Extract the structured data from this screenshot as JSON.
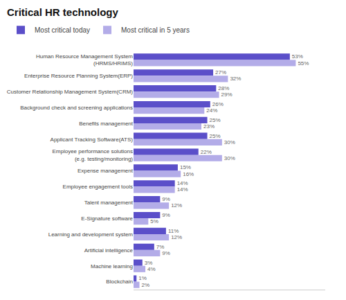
{
  "chart_data": {
    "type": "bar",
    "orientation": "horizontal",
    "title": "Critical HR technology",
    "categories": [
      "Human Resource Management System\n(HRMS/HRIMS)",
      "Enterprise Resource Planning System(ERP)",
      "Customer Relationship Management System(CRM)",
      "Background check and screening applications",
      "Benefits management",
      "Applicant Tracking Software(ATS)",
      "Employee performance solutions\n(e.g. testing/monitoring)",
      "Expense management",
      "Employee engagement tools",
      "Talent management",
      "E-Signature software",
      "Learning and development system",
      "Artificial intelligence",
      "Machine learning",
      "Blockchain"
    ],
    "series": [
      {
        "name": "Most critical today",
        "color": "#5b4fc9",
        "values": [
          53,
          27,
          28,
          26,
          25,
          25,
          22,
          15,
          14,
          9,
          9,
          11,
          7,
          3,
          1
        ],
        "value_labels": [
          "53%",
          "27%",
          "28%",
          "26%",
          "25%",
          "25%",
          "22%",
          "15%",
          "14%",
          "9%",
          "9%",
          "11%",
          "7%",
          "3%",
          "1%"
        ]
      },
      {
        "name": "Most critical in 5 years",
        "color": "#b3ace8",
        "values": [
          55,
          32,
          29,
          24,
          23,
          30,
          30,
          16,
          14,
          12,
          5,
          12,
          9,
          4,
          2
        ],
        "value_labels": [
          "55%",
          "32%",
          "29%",
          "24%",
          "23%",
          "30%",
          "30%",
          "16%",
          "14%",
          "12%",
          "5%",
          "12%",
          "9%",
          "4%",
          "2%"
        ]
      }
    ],
    "xlim": [
      0,
      65
    ],
    "data_labels": true,
    "tick_labels": "y",
    "grid": false,
    "legend": "top"
  }
}
